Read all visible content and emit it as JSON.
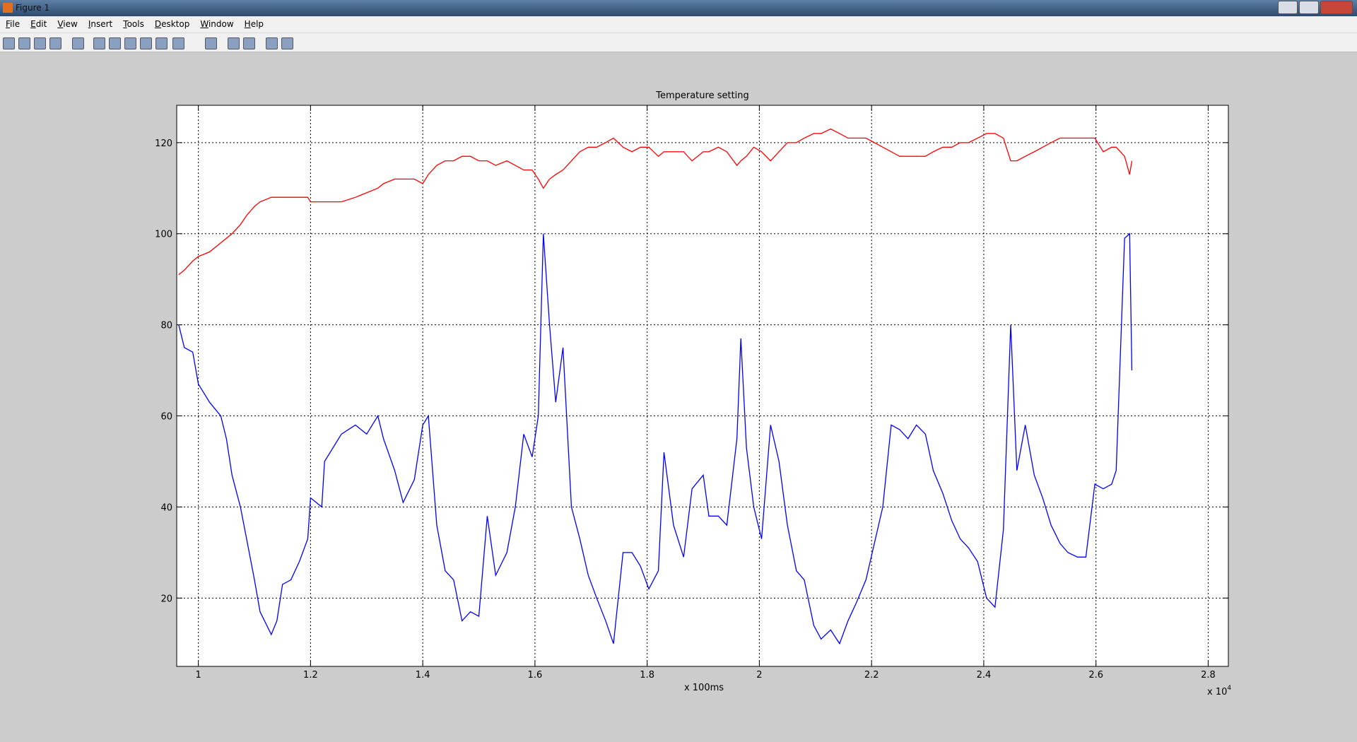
{
  "window": {
    "title": "Figure 1",
    "menu": [
      "File",
      "Edit",
      "View",
      "Insert",
      "Tools",
      "Desktop",
      "Window",
      "Help"
    ]
  },
  "chart_data": {
    "type": "line",
    "title": "Temperature setting",
    "x_label": "x 100ms",
    "x_multiplier": {
      "base": "x 10",
      "exponent": "4"
    },
    "x": [
      0.965,
      0.975,
      0.99,
      1.0,
      1.02,
      1.04,
      1.05,
      1.06,
      1.075,
      1.086,
      1.1,
      1.11,
      1.13,
      1.14,
      1.15,
      1.165,
      1.18,
      1.195,
      1.2,
      1.22,
      1.225,
      1.24,
      1.255,
      1.28,
      1.3,
      1.32,
      1.33,
      1.35,
      1.365,
      1.385,
      1.4,
      1.41,
      1.425,
      1.44,
      1.455,
      1.47,
      1.485,
      1.5,
      1.515,
      1.53,
      1.55,
      1.565,
      1.58,
      1.595,
      1.606,
      1.615,
      1.626,
      1.637,
      1.65,
      1.665,
      1.68,
      1.695,
      1.71,
      1.726,
      1.74,
      1.757,
      1.773,
      1.788,
      1.803,
      1.82,
      1.83,
      1.847,
      1.865,
      1.88,
      1.9,
      1.91,
      1.927,
      1.942,
      1.96,
      1.967,
      1.977,
      1.99,
      2.004,
      2.02,
      2.035,
      2.05,
      2.066,
      2.08,
      2.097,
      2.11,
      2.127,
      2.143,
      2.158,
      2.173,
      2.19,
      2.205,
      2.22,
      2.235,
      2.25,
      2.265,
      2.28,
      2.296,
      2.31,
      2.327,
      2.343,
      2.358,
      2.373,
      2.389,
      2.405,
      2.42,
      2.435,
      2.448,
      2.459,
      2.474,
      2.49,
      2.505,
      2.52,
      2.536,
      2.55,
      2.567,
      2.582,
      2.598,
      2.613,
      2.628,
      2.636,
      2.651,
      2.66,
      2.664
    ],
    "series": [
      {
        "color": "#ff0000",
        "values": [
          91,
          92,
          94,
          95,
          96,
          98,
          99,
          100,
          102,
          104,
          106,
          107,
          108,
          108,
          108,
          108,
          108,
          108,
          107,
          107,
          107,
          107,
          107,
          108,
          109,
          110,
          111,
          112,
          112,
          112,
          111,
          113,
          115,
          116,
          116,
          117,
          117,
          116,
          116,
          115,
          116,
          115,
          114,
          114,
          112,
          110,
          112,
          113,
          114,
          116,
          118,
          119,
          119,
          120,
          121,
          119,
          118,
          119,
          119,
          117,
          118,
          118,
          118,
          116,
          118,
          118,
          119,
          118,
          115,
          116,
          117,
          119,
          118,
          116,
          118,
          120,
          120,
          121,
          122,
          122,
          123,
          122,
          121,
          121,
          121,
          120,
          119,
          118,
          117,
          117,
          117,
          117,
          118,
          119,
          119,
          120,
          120,
          121,
          122,
          122,
          121,
          116,
          116,
          117,
          118,
          119,
          120,
          121,
          121,
          121,
          121,
          121,
          118,
          119,
          119,
          117,
          113,
          116
        ]
      },
      {
        "color": "#0000ff",
        "values": [
          80,
          75,
          74,
          67,
          63,
          60,
          55,
          47,
          40,
          33,
          24,
          17,
          12,
          15,
          23,
          24,
          28,
          33,
          42,
          40,
          50,
          53,
          56,
          58,
          56,
          60,
          55,
          48,
          41,
          46,
          58,
          60,
          36,
          26,
          24,
          15,
          17,
          16,
          38,
          25,
          30,
          40,
          56,
          51,
          60,
          100,
          80,
          63,
          75,
          40,
          33,
          25,
          20,
          15,
          10,
          30,
          30,
          27,
          22,
          26,
          52,
          36,
          29,
          44,
          47,
          38,
          38,
          36,
          55,
          77,
          53,
          40,
          33,
          58,
          50,
          36,
          26,
          24,
          14,
          11,
          13,
          10,
          15,
          19,
          24,
          32,
          40,
          58,
          57,
          55,
          58,
          56,
          48,
          43,
          37,
          33,
          31,
          28,
          20,
          18,
          35,
          80,
          48,
          58,
          47,
          42,
          36,
          32,
          30,
          29,
          29,
          45,
          44,
          45,
          48,
          99,
          100,
          70
        ]
      }
    ],
    "xlim": [
      0.9614,
      2.836
    ],
    "ylim": [
      5,
      128.2
    ],
    "xticks": [
      1,
      1.2,
      1.4,
      1.6,
      1.8,
      2,
      2.2,
      2.4,
      2.6,
      2.8
    ],
    "yticks": [
      20,
      40,
      60,
      80,
      100,
      120
    ],
    "grid": true
  }
}
